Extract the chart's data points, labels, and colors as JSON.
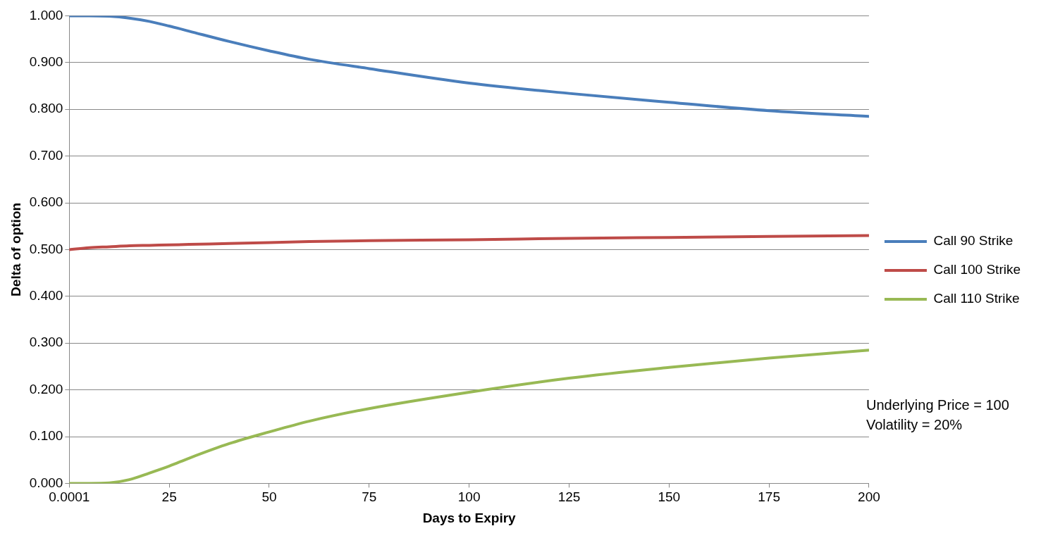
{
  "chart_data": {
    "type": "line",
    "xlabel": "Days to Expiry",
    "ylabel": "Delta of option",
    "xlim": [
      0.0001,
      200
    ],
    "xticks": [
      0.0001,
      25,
      50,
      75,
      100,
      125,
      150,
      175,
      200
    ],
    "ylim": [
      0,
      1
    ],
    "yticks": [
      {
        "value": 0,
        "label": "0.000"
      },
      {
        "value": 0.1,
        "label": "0.100"
      },
      {
        "value": 0.2,
        "label": "0.200"
      },
      {
        "value": 0.3,
        "label": "0.300"
      },
      {
        "value": 0.4,
        "label": "0.400"
      },
      {
        "value": 0.5,
        "label": "0.500"
      },
      {
        "value": 0.6,
        "label": "0.600"
      },
      {
        "value": 0.7,
        "label": "0.700"
      },
      {
        "value": 0.8,
        "label": "0.800"
      },
      {
        "value": 0.9,
        "label": "0.900"
      },
      {
        "value": 1,
        "label": "1.000"
      }
    ],
    "grid": "y",
    "legend": "right",
    "marker": "none",
    "line_style": "solid",
    "x": [
      0.0001,
      5,
      10,
      15,
      20,
      25,
      30,
      40,
      50,
      60,
      75,
      100,
      125,
      150,
      175,
      200
    ],
    "series": [
      {
        "name": "Call 90 Strike",
        "color": "#4a7ebb",
        "values": [
          1.0,
          1.0,
          0.999,
          0.995,
          0.988,
          0.978,
          0.967,
          0.945,
          0.925,
          0.907,
          0.887,
          0.856,
          0.834,
          0.815,
          0.797,
          0.785
        ]
      },
      {
        "name": "Call 100 Strike",
        "color": "#be4b48",
        "values": [
          0.5,
          0.504,
          0.506,
          0.508,
          0.509,
          0.51,
          0.511,
          0.513,
          0.515,
          0.517,
          0.519,
          0.521,
          0.524,
          0.526,
          0.528,
          0.53
        ]
      },
      {
        "name": "Call 110 Strike",
        "color": "#98b954",
        "values": [
          0,
          0,
          0.001,
          0.008,
          0.022,
          0.037,
          0.054,
          0.085,
          0.11,
          0.133,
          0.16,
          0.195,
          0.225,
          0.248,
          0.268,
          0.285
        ]
      }
    ],
    "annotations": [
      "Underlying Price = 100",
      "Volatility = 20%"
    ]
  }
}
